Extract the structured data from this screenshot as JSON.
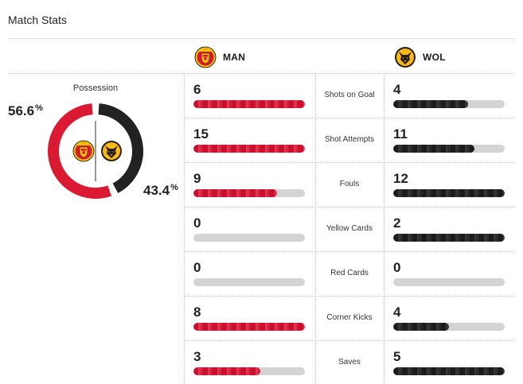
{
  "title": "Match Stats",
  "teams": {
    "home": {
      "abbr": "MAN",
      "color": "#da1a32",
      "crest": "manchester-united-crest-icon"
    },
    "away": {
      "abbr": "WOL",
      "color": "#222222",
      "crest": "wolves-crest-icon"
    }
  },
  "possession": {
    "label": "Possession",
    "home_pct": "56.6",
    "away_pct": "43.4",
    "pct_sign": "%",
    "home_value": 56.6,
    "away_value": 43.4
  },
  "stats": [
    {
      "label": "Shots on Goal",
      "home": "6",
      "away": "4",
      "home_fill": 1.0,
      "away_fill": 0.67
    },
    {
      "label": "Shot Attempts",
      "home": "15",
      "away": "11",
      "home_fill": 1.0,
      "away_fill": 0.73
    },
    {
      "label": "Fouls",
      "home": "9",
      "away": "12",
      "home_fill": 0.75,
      "away_fill": 1.0
    },
    {
      "label": "Yellow Cards",
      "home": "0",
      "away": "2",
      "home_fill": 0.0,
      "away_fill": 1.0
    },
    {
      "label": "Red Cards",
      "home": "0",
      "away": "0",
      "home_fill": 0.0,
      "away_fill": 0.0
    },
    {
      "label": "Corner Kicks",
      "home": "8",
      "away": "4",
      "home_fill": 1.0,
      "away_fill": 0.5
    },
    {
      "label": "Saves",
      "home": "3",
      "away": "5",
      "home_fill": 0.6,
      "away_fill": 1.0
    }
  ]
}
